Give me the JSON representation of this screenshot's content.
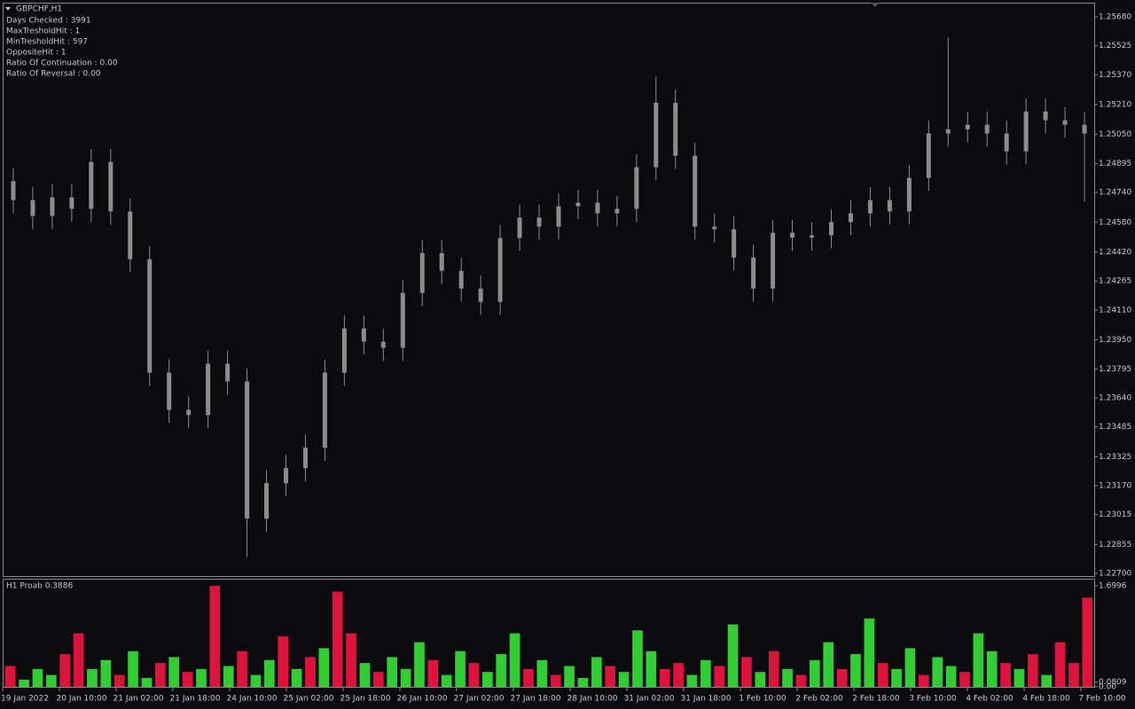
{
  "chart_data": [
    {
      "type": "candlestick",
      "title": "GBPCHF,H1",
      "info": [
        "Days Checked : 3991",
        "MaxTresholdHit : 1",
        "MinTresholdHit : 597",
        "OppositeHit : 1",
        "Ratio Of Continuation : 0.00",
        "Ratio Of Reversal : 0.00"
      ],
      "color": "#8c8c8c",
      "open": [
        1.248,
        1.24699,
        1.24614,
        1.24713,
        1.24652,
        1.24903,
        1.24638,
        1.24382,
        1.23775,
        1.23576,
        1.23548,
        1.23823,
        1.23728,
        1.22994,
        1.23183,
        1.23264,
        1.23373,
        1.23775,
        1.24012,
        1.23941,
        1.23908,
        1.24202,
        1.24415,
        1.2432,
        1.24225,
        1.24154,
        1.24496,
        1.24605,
        1.24557,
        1.24666,
        1.24685,
        1.24628,
        1.24652,
        1.24875,
        1.2522,
        1.24936,
        1.24557,
        1.24543,
        1.24391,
        1.24225,
        1.24524,
        1.24498,
        1.2451,
        1.24581,
        1.24628,
        1.24699,
        1.24638,
        1.24818,
        1.25055,
        1.25078,
        1.25102,
        1.25055,
        1.2496,
        1.25173,
        1.25126,
        1.25102
      ],
      "high": [
        1.2487,
        1.24769,
        1.24783,
        1.24783,
        1.24973,
        1.24973,
        1.24708,
        1.24452,
        1.23845,
        1.23646,
        1.23893,
        1.23893,
        1.23798,
        1.23253,
        1.23334,
        1.23443,
        1.23845,
        1.24082,
        1.24082,
        1.24011,
        1.24272,
        1.24485,
        1.24485,
        1.2439,
        1.24295,
        1.24566,
        1.24675,
        1.24675,
        1.24736,
        1.24755,
        1.24755,
        1.24722,
        1.24945,
        1.2536,
        1.2529,
        1.25006,
        1.24627,
        1.24613,
        1.24461,
        1.24594,
        1.24594,
        1.2458,
        1.24651,
        1.24698,
        1.24769,
        1.24769,
        1.24888,
        1.25125,
        1.2557,
        1.25172,
        1.25172,
        1.25125,
        1.25243,
        1.25243,
        1.25196,
        1.25172
      ],
      "low": [
        1.24629,
        1.24544,
        1.24544,
        1.24582,
        1.24582,
        1.24568,
        1.24312,
        1.23705,
        1.23506,
        1.23478,
        1.23478,
        1.23658,
        1.2279,
        1.22924,
        1.23113,
        1.23194,
        1.23303,
        1.23705,
        1.23871,
        1.23838,
        1.23838,
        1.24132,
        1.2425,
        1.24155,
        1.24084,
        1.24084,
        1.24426,
        1.24487,
        1.24487,
        1.24596,
        1.24558,
        1.24558,
        1.24582,
        1.24805,
        1.24866,
        1.24487,
        1.24473,
        1.24321,
        1.24155,
        1.24155,
        1.24428,
        1.24428,
        1.2444,
        1.24511,
        1.24558,
        1.24568,
        1.24568,
        1.24748,
        1.24985,
        1.25008,
        1.24985,
        1.2489,
        1.2489,
        1.25056,
        1.25032,
        1.2469
      ],
      "close": [
        1.24699,
        1.24614,
        1.24713,
        1.24652,
        1.24903,
        1.24638,
        1.24382,
        1.23775,
        1.23576,
        1.23548,
        1.23823,
        1.23728,
        1.22994,
        1.23183,
        1.23264,
        1.23373,
        1.23775,
        1.24012,
        1.23941,
        1.23908,
        1.24202,
        1.24415,
        1.2432,
        1.24225,
        1.24154,
        1.24496,
        1.24605,
        1.24557,
        1.24666,
        1.24685,
        1.24628,
        1.24652,
        1.24875,
        1.2522,
        1.24936,
        1.24557,
        1.24543,
        1.24391,
        1.24225,
        1.24524,
        1.24498,
        1.2451,
        1.24581,
        1.24628,
        1.24699,
        1.24638,
        1.24818,
        1.25055,
        1.25078,
        1.25102,
        1.25055,
        1.2496,
        1.25173,
        1.25126,
        1.25102,
        1.25055
      ],
      "ylim": [
        1.22686,
        1.25751
      ],
      "yticks": [
        {
          "value": 1.2568,
          "label": "1.25680"
        },
        {
          "value": 1.25525,
          "label": "1.25525"
        },
        {
          "value": 1.2537,
          "label": "1.25370"
        },
        {
          "value": 1.2521,
          "label": "1.25210"
        },
        {
          "value": 1.2505,
          "label": "1.25050"
        },
        {
          "value": 1.24895,
          "label": "1.24895"
        },
        {
          "value": 1.2474,
          "label": "1.24740"
        },
        {
          "value": 1.2458,
          "label": "1.24580"
        },
        {
          "value": 1.2442,
          "label": "1.24420"
        },
        {
          "value": 1.24265,
          "label": "1.24265"
        },
        {
          "value": 1.2411,
          "label": "1.24110"
        },
        {
          "value": 1.2395,
          "label": "1.23950"
        },
        {
          "value": 1.23795,
          "label": "1.23795"
        },
        {
          "value": 1.2364,
          "label": "1.23640"
        },
        {
          "value": 1.23485,
          "label": "1.23485"
        },
        {
          "value": 1.23325,
          "label": "1.23325"
        },
        {
          "value": 1.2317,
          "label": "1.23170"
        },
        {
          "value": 1.23015,
          "label": "1.23015"
        },
        {
          "value": 1.22855,
          "label": "1.22855"
        },
        {
          "value": 1.227,
          "label": "1.22700"
        }
      ]
    },
    {
      "type": "bar",
      "title": "H1 Proab  0.3886",
      "values": [
        0.35,
        0.12,
        0.3,
        0.2,
        0.55,
        0.9,
        0.3,
        0.45,
        0.2,
        0.6,
        0.15,
        0.4,
        0.5,
        0.25,
        0.3,
        1.7,
        0.35,
        0.6,
        0.2,
        0.45,
        0.85,
        0.3,
        0.5,
        0.65,
        1.6,
        0.9,
        0.4,
        0.25,
        0.5,
        0.3,
        0.75,
        0.45,
        0.2,
        0.6,
        0.4,
        0.25,
        0.55,
        0.9,
        0.3,
        0.45,
        0.2,
        0.35,
        0.15,
        0.5,
        0.35,
        0.25,
        0.95,
        0.6,
        0.3,
        0.4,
        0.2,
        0.45,
        0.35,
        1.05,
        0.5,
        0.25,
        0.6,
        0.3,
        0.2,
        0.45,
        0.75,
        0.3,
        0.55,
        1.15,
        0.4,
        0.3,
        0.65,
        0.2,
        0.5,
        0.35,
        0.25,
        0.9,
        0.6,
        0.4,
        0.3,
        0.55,
        0.2,
        0.75,
        0.4,
        1.5
      ],
      "colors": [
        "#dc143c",
        "#32cd32",
        "#32cd32",
        "#32cd32",
        "#dc143c",
        "#dc143c",
        "#32cd32",
        "#32cd32",
        "#dc143c",
        "#32cd32",
        "#32cd32",
        "#dc143c",
        "#32cd32",
        "#dc143c",
        "#32cd32",
        "#dc143c",
        "#32cd32",
        "#dc143c",
        "#32cd32",
        "#32cd32",
        "#dc143c",
        "#32cd32",
        "#dc143c",
        "#32cd32",
        "#dc143c",
        "#dc143c",
        "#32cd32",
        "#dc143c",
        "#32cd32",
        "#32cd32",
        "#32cd32",
        "#dc143c",
        "#32cd32",
        "#32cd32",
        "#dc143c",
        "#32cd32",
        "#32cd32",
        "#32cd32",
        "#dc143c",
        "#32cd32",
        "#dc143c",
        "#32cd32",
        "#32cd32",
        "#32cd32",
        "#dc143c",
        "#32cd32",
        "#32cd32",
        "#32cd32",
        "#dc143c",
        "#dc143c",
        "#32cd32",
        "#32cd32",
        "#dc143c",
        "#32cd32",
        "#dc143c",
        "#32cd32",
        "#dc143c",
        "#32cd32",
        "#dc143c",
        "#32cd32",
        "#32cd32",
        "#dc143c",
        "#32cd32",
        "#32cd32",
        "#dc143c",
        "#32cd32",
        "#32cd32",
        "#dc143c",
        "#32cd32",
        "#32cd32",
        "#dc143c",
        "#32cd32",
        "#32cd32",
        "#dc143c",
        "#32cd32",
        "#dc143c",
        "#32cd32",
        "#dc143c",
        "#dc143c",
        "#dc143c"
      ],
      "ylim": [
        0,
        1.803
      ],
      "yticks": [
        1.6996,
        0.0809,
        {
          "value": 0,
          "label": "0.00"
        }
      ]
    }
  ],
  "time_labels": [
    "19 Jan 2022",
    "20 Jan 10:00",
    "21 Jan 02:00",
    "21 Jan 18:00",
    "24 Jan 10:00",
    "25 Jan 02:00",
    "25 Jan 18:00",
    "26 Jan 10:00",
    "27 Jan 02:00",
    "27 Jan 18:00",
    "28 Jan 10:00",
    "31 Jan 02:00",
    "31 Jan 18:00",
    "1 Feb 10:00",
    "2 Feb 02:00",
    "2 Feb 18:00",
    "3 Feb 10:00",
    "4 Feb 02:00",
    "4 Feb 18:00",
    "7 Feb 10:00"
  ]
}
